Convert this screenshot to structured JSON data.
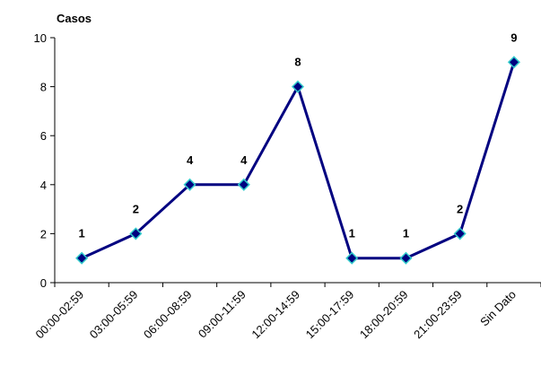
{
  "chart_data": {
    "type": "line",
    "title": "",
    "xlabel": "",
    "ylabel": "Casos",
    "categories": [
      "00:00-02:59",
      "03:00-05:59",
      "06:00-08:59",
      "09:00-11:59",
      "12:00-14:59",
      "15:00-17:59",
      "18:00-20:59",
      "21:00-23:59",
      "Sin Dato"
    ],
    "series": [
      {
        "values": [
          1,
          2,
          4,
          4,
          8,
          1,
          1,
          2,
          9
        ]
      }
    ],
    "data_labels": [
      "1",
      "2",
      "4",
      "4",
      "8",
      "1",
      "1",
      "2",
      "9"
    ],
    "ylim": [
      0,
      10
    ],
    "yticks": [
      "0",
      "2",
      "4",
      "6",
      "8",
      "10"
    ],
    "grid": false,
    "legend": "none",
    "colors": {
      "line": "#000080",
      "marker_fill": "#000080",
      "marker_stroke": "#33CCCC"
    }
  }
}
